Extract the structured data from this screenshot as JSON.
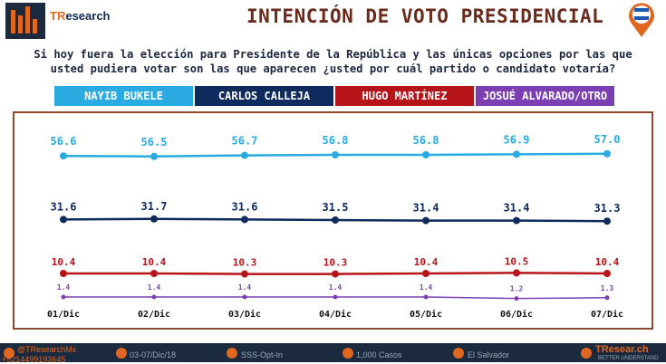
{
  "header": {
    "logo_tr": "TR",
    "logo_rest": "esearch",
    "title": "INTENCIÓN DE VOTO PRESIDENCIAL"
  },
  "question": "Si hoy fuera la elección para Presidente de la República y las únicas opciones por las que usted pudiera votar son las que aparecen ¿usted por cuál partido o candidato votaría?",
  "colors": {
    "bukele": "#29abe2",
    "calleja": "#0f2a5c",
    "martinez": "#b7141a",
    "alvarado": "#7b3fb3",
    "frame": "#8a4a2e",
    "footer": "#1b2a3e",
    "accent": "#e0671f"
  },
  "chart_data": {
    "type": "line",
    "categories": [
      "01/Dic",
      "02/Dic",
      "03/Dic",
      "04/Dic",
      "05/Dic",
      "06/Dic",
      "07/Dic"
    ],
    "series": [
      {
        "name": "NAYIB BUKELE",
        "values": [
          56.6,
          56.5,
          56.7,
          56.8,
          56.8,
          56.9,
          57.0
        ]
      },
      {
        "name": "CARLOS CALLEJA",
        "values": [
          31.6,
          31.7,
          31.6,
          31.5,
          31.4,
          31.4,
          31.3
        ]
      },
      {
        "name": "HUGO MARTÍNEZ",
        "values": [
          10.4,
          10.4,
          10.3,
          10.3,
          10.4,
          10.5,
          10.4
        ]
      },
      {
        "name": "JOSUÉ ALVARADO/OTRO",
        "values": [
          1.4,
          1.4,
          1.4,
          1.4,
          1.4,
          1.2,
          1.3
        ]
      }
    ],
    "labels": [
      [
        "56.6",
        "56.5",
        "56.7",
        "56.8",
        "56.8",
        "56.9",
        "57.0"
      ],
      [
        "31.6",
        "31.7",
        "31.6",
        "31.5",
        "31.4",
        "31.4",
        "31.3"
      ],
      [
        "10.4",
        "10.4",
        "10.3",
        "10.3",
        "10.4",
        "10.5",
        "10.4"
      ],
      [
        "1.4",
        "1.4",
        "1.4",
        "1.4",
        "1.4",
        "1.2",
        "1.3"
      ]
    ]
  },
  "footer": {
    "twitter": "@TResearchMx",
    "phone": "+5214499193645",
    "dates": "03-07/Dic/18",
    "method": "SSS-Opt-In",
    "cases": "1,000 Casos",
    "country": "El Salvador",
    "site": "TResear.ch",
    "tagline": "BETTER UNDERSTAND"
  }
}
